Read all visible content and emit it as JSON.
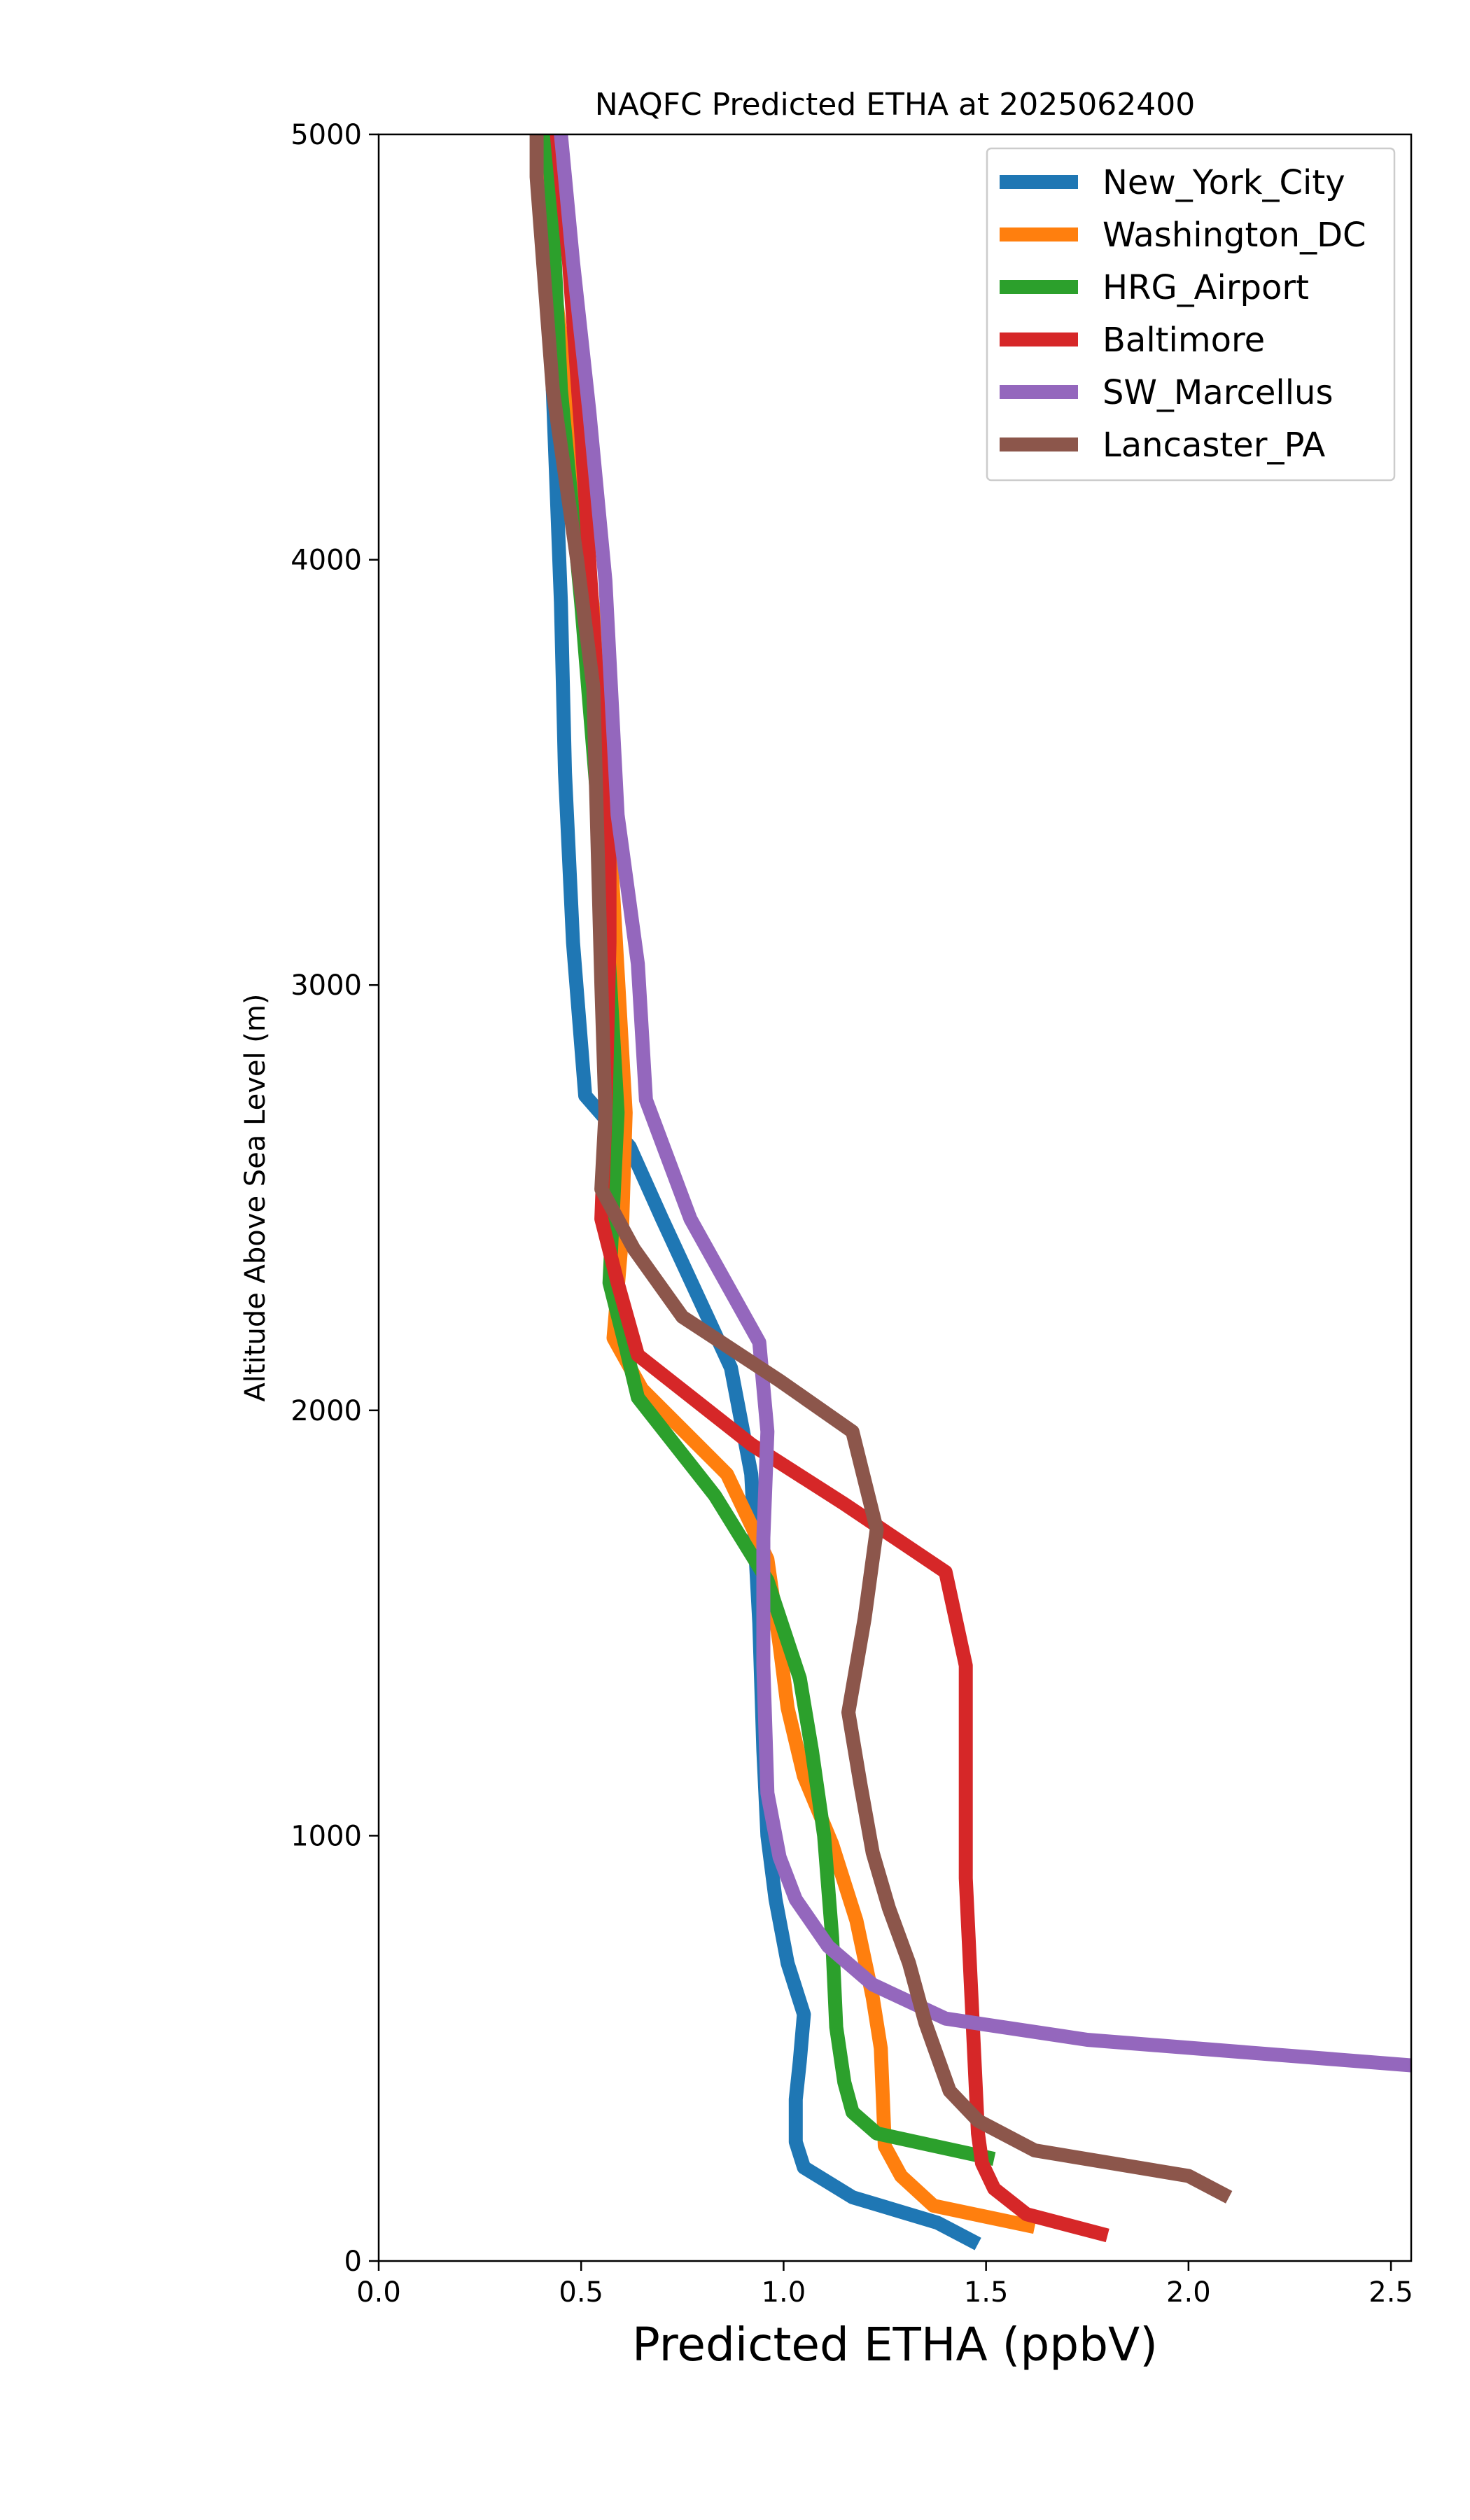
{
  "chart_data": {
    "type": "line",
    "title": "NAQFC Predicted ETHA at 2025062400",
    "xlabel": "Predicted ETHA (ppbV)",
    "ylabel": "Altitude Above Sea Level (m)",
    "xlim": [
      0.0,
      2.55
    ],
    "ylim": [
      0,
      5000
    ],
    "xticks": [
      "0.0",
      "0.5",
      "1.0",
      "1.5",
      "2.0",
      "2.5"
    ],
    "yticks": [
      "0",
      "1000",
      "2000",
      "3000",
      "4000",
      "5000"
    ],
    "grid": false,
    "legend_position": "top-right",
    "series": [
      {
        "name": "New_York_City",
        "color": "#1f77b4",
        "points": [
          [
            1.48,
            40
          ],
          [
            1.38,
            90
          ],
          [
            1.17,
            150
          ],
          [
            1.05,
            220
          ],
          [
            1.03,
            280
          ],
          [
            1.03,
            380
          ],
          [
            1.04,
            470
          ],
          [
            1.05,
            580
          ],
          [
            1.01,
            700
          ],
          [
            0.98,
            850
          ],
          [
            0.96,
            1000
          ],
          [
            0.95,
            1200
          ],
          [
            0.94,
            1500
          ],
          [
            0.92,
            1850
          ],
          [
            0.87,
            2100
          ],
          [
            0.7,
            2450
          ],
          [
            0.62,
            2620
          ],
          [
            0.51,
            2740
          ],
          [
            0.48,
            3100
          ],
          [
            0.46,
            3500
          ],
          [
            0.45,
            3900
          ],
          [
            0.43,
            4400
          ],
          [
            0.42,
            5000
          ]
        ]
      },
      {
        "name": "Washington_DC",
        "color": "#ff7f0e",
        "points": [
          [
            1.62,
            80
          ],
          [
            1.37,
            130
          ],
          [
            1.29,
            200
          ],
          [
            1.25,
            270
          ],
          [
            1.24,
            500
          ],
          [
            1.22,
            620
          ],
          [
            1.18,
            800
          ],
          [
            1.12,
            980
          ],
          [
            1.05,
            1140
          ],
          [
            1.01,
            1300
          ],
          [
            0.99,
            1450
          ],
          [
            0.96,
            1650
          ],
          [
            0.86,
            1850
          ],
          [
            0.65,
            2050
          ],
          [
            0.58,
            2170
          ],
          [
            0.6,
            2400
          ],
          [
            0.61,
            2700
          ],
          [
            0.58,
            3200
          ],
          [
            0.54,
            3800
          ],
          [
            0.49,
            4200
          ],
          [
            0.44,
            4600
          ],
          [
            0.41,
            5000
          ]
        ]
      },
      {
        "name": "HRG_Airport",
        "color": "#2ca02c",
        "points": [
          [
            1.52,
            240
          ],
          [
            1.23,
            300
          ],
          [
            1.17,
            350
          ],
          [
            1.15,
            420
          ],
          [
            1.13,
            550
          ],
          [
            1.12,
            760
          ],
          [
            1.1,
            1000
          ],
          [
            1.07,
            1200
          ],
          [
            1.04,
            1370
          ],
          [
            0.96,
            1600
          ],
          [
            0.83,
            1800
          ],
          [
            0.64,
            2030
          ],
          [
            0.61,
            2150
          ],
          [
            0.57,
            2300
          ],
          [
            0.58,
            2500
          ],
          [
            0.59,
            2700
          ],
          [
            0.56,
            3200
          ],
          [
            0.5,
            3900
          ],
          [
            0.45,
            4400
          ],
          [
            0.42,
            5000
          ]
        ]
      },
      {
        "name": "Baltimore",
        "color": "#d62728",
        "points": [
          [
            1.8,
            60
          ],
          [
            1.6,
            110
          ],
          [
            1.52,
            170
          ],
          [
            1.49,
            230
          ],
          [
            1.48,
            300
          ],
          [
            1.47,
            500
          ],
          [
            1.46,
            700
          ],
          [
            1.45,
            900
          ],
          [
            1.45,
            1200
          ],
          [
            1.45,
            1400
          ],
          [
            1.4,
            1620
          ],
          [
            1.15,
            1780
          ],
          [
            0.92,
            1920
          ],
          [
            0.64,
            2130
          ],
          [
            0.59,
            2300
          ],
          [
            0.55,
            2450
          ],
          [
            0.56,
            2700
          ],
          [
            0.57,
            3100
          ],
          [
            0.57,
            3400
          ],
          [
            0.54,
            3700
          ],
          [
            0.5,
            4300
          ],
          [
            0.47,
            4700
          ],
          [
            0.44,
            5000
          ]
        ]
      },
      {
        "name": "SW_Marcellus",
        "color": "#9467bd",
        "points": [
          [
            2.55,
            460
          ],
          [
            1.75,
            520
          ],
          [
            1.4,
            570
          ],
          [
            1.22,
            650
          ],
          [
            1.11,
            740
          ],
          [
            1.03,
            850
          ],
          [
            0.99,
            950
          ],
          [
            0.96,
            1100
          ],
          [
            0.95,
            1400
          ],
          [
            0.95,
            1700
          ],
          [
            0.96,
            1950
          ],
          [
            0.94,
            2160
          ],
          [
            0.77,
            2450
          ],
          [
            0.66,
            2730
          ],
          [
            0.64,
            3050
          ],
          [
            0.59,
            3400
          ],
          [
            0.56,
            3950
          ],
          [
            0.52,
            4350
          ],
          [
            0.48,
            4700
          ],
          [
            0.45,
            5000
          ]
        ]
      },
      {
        "name": "Lancaster_PA",
        "color": "#8c564b",
        "points": [
          [
            2.1,
            150
          ],
          [
            2.0,
            200
          ],
          [
            1.62,
            260
          ],
          [
            1.48,
            330
          ],
          [
            1.41,
            400
          ],
          [
            1.35,
            560
          ],
          [
            1.31,
            700
          ],
          [
            1.26,
            830
          ],
          [
            1.22,
            960
          ],
          [
            1.19,
            1120
          ],
          [
            1.16,
            1290
          ],
          [
            1.2,
            1510
          ],
          [
            1.23,
            1720
          ],
          [
            1.17,
            1950
          ],
          [
            0.99,
            2070
          ],
          [
            0.75,
            2220
          ],
          [
            0.63,
            2380
          ],
          [
            0.55,
            2520
          ],
          [
            0.56,
            2700
          ],
          [
            0.55,
            3000
          ],
          [
            0.53,
            3700
          ],
          [
            0.49,
            4000
          ],
          [
            0.43,
            4400
          ],
          [
            0.39,
            4900
          ],
          [
            0.39,
            5000
          ]
        ]
      }
    ]
  }
}
